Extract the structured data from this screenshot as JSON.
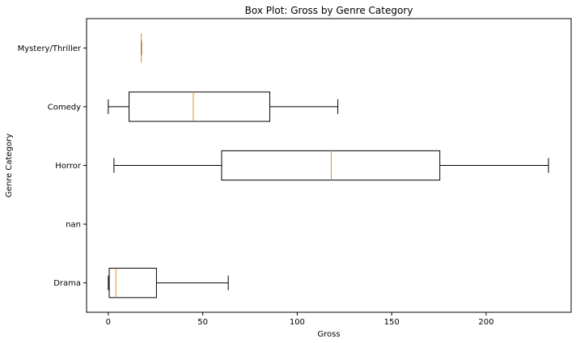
{
  "chart_data": {
    "type": "boxplot",
    "orientation": "horizontal",
    "title": "Box Plot: Gross by Genre Category",
    "xlabel": "Gross",
    "ylabel": "Genre Category",
    "xlim": [
      -11.5,
      245
    ],
    "xticks": [
      0,
      50,
      100,
      150,
      200
    ],
    "grid": false,
    "categories": [
      "Drama",
      "nan",
      "Horror",
      "Comedy",
      "Mystery/Thriller"
    ],
    "boxes": [
      {
        "category": "Drama",
        "whisker_low": 0,
        "q1": 0.5,
        "median": 4,
        "q3": 25.5,
        "whisker_high": 63.5
      },
      {
        "category": "nan"
      },
      {
        "category": "Horror",
        "whisker_low": 3,
        "q1": 60,
        "median": 118,
        "q3": 175.5,
        "whisker_high": 233
      },
      {
        "category": "Comedy",
        "whisker_low": 0,
        "q1": 11,
        "median": 45,
        "q3": 85.5,
        "whisker_high": 121.5
      },
      {
        "category": "Mystery/Thriller",
        "whisker_low": 17.5,
        "q1": 17.5,
        "median": 17.5,
        "q3": 17.5,
        "whisker_high": 17.5
      }
    ],
    "box_color": "#000000",
    "median_color": "#e08a1e"
  }
}
